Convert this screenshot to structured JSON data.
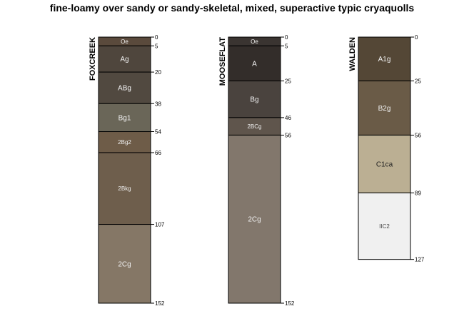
{
  "title": "fine-loamy over sandy or sandy-skeletal, mixed, superactive typic cryaquolls",
  "chart_data": {
    "type": "soil-profile-sketch",
    "title": "fine-loamy over sandy or sandy-skeletal, mixed, superactive typic cryaquolls",
    "depth_units": "cm",
    "ylim": [
      0,
      152
    ],
    "profiles": [
      {
        "name": "FOXCREEK",
        "horizons": [
          {
            "name": "Oe",
            "top": 0,
            "bottom": 5,
            "color": "#5a4a3c",
            "text_color": "#f0f0f0"
          },
          {
            "name": "Ag",
            "top": 5,
            "bottom": 20,
            "color": "#4f463d",
            "text_color": "#f0f0f0"
          },
          {
            "name": "ABg",
            "top": 20,
            "bottom": 38,
            "color": "#514940",
            "text_color": "#f0f0f0"
          },
          {
            "name": "Bg1",
            "top": 38,
            "bottom": 54,
            "color": "#6a6658",
            "text_color": "#f0f0f0"
          },
          {
            "name": "2Bg2",
            "top": 54,
            "bottom": 66,
            "color": "#6e5c48",
            "text_color": "#f0f0f0"
          },
          {
            "name": "2Bkg",
            "top": 66,
            "bottom": 107,
            "color": "#6e5e4c",
            "text_color": "#f0f0f0"
          },
          {
            "name": "2Cg",
            "top": 107,
            "bottom": 152,
            "color": "#857766",
            "text_color": "#f0f0f0"
          }
        ],
        "depth_ticks": [
          0,
          5,
          20,
          38,
          54,
          66,
          107,
          152
        ]
      },
      {
        "name": "MOOSEFLAT",
        "horizons": [
          {
            "name": "Oe",
            "top": 0,
            "bottom": 5,
            "color": "#3a3431",
            "text_color": "#f0f0f0"
          },
          {
            "name": "A",
            "top": 5,
            "bottom": 25,
            "color": "#332d2a",
            "text_color": "#f0f0f0"
          },
          {
            "name": "Bg",
            "top": 25,
            "bottom": 46,
            "color": "#4a433e",
            "text_color": "#f0f0f0"
          },
          {
            "name": "2BCg",
            "top": 46,
            "bottom": 56,
            "color": "#5f554c",
            "text_color": "#f0f0f0"
          },
          {
            "name": "2Cg",
            "top": 56,
            "bottom": 152,
            "color": "#82776c",
            "text_color": "#f0f0f0"
          }
        ],
        "depth_ticks": [
          0,
          5,
          25,
          46,
          56,
          152
        ]
      },
      {
        "name": "WALDEN",
        "horizons": [
          {
            "name": "A1g",
            "top": 0,
            "bottom": 25,
            "color": "#544736",
            "text_color": "#f0f0f0"
          },
          {
            "name": "B2g",
            "top": 25,
            "bottom": 56,
            "color": "#6a5b47",
            "text_color": "#f0f0f0"
          },
          {
            "name": "C1ca",
            "top": 56,
            "bottom": 89,
            "color": "#bbaf93",
            "text_color": "#222222"
          },
          {
            "name": "IIC2",
            "top": 89,
            "bottom": 127,
            "color": "#f0f0f0",
            "text_color": "#444444"
          }
        ],
        "depth_ticks": [
          0,
          25,
          56,
          89,
          127
        ]
      }
    ]
  }
}
